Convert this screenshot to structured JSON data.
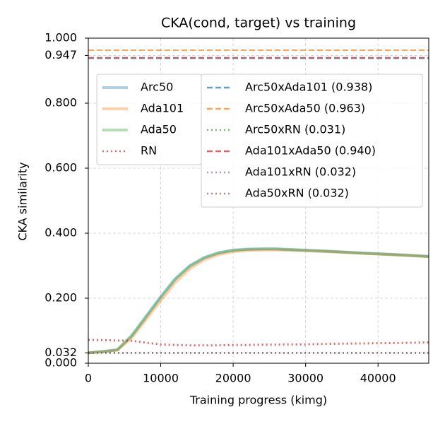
{
  "chart_data": {
    "type": "line",
    "title": "CKA(cond, target) vs training",
    "xlabel": "Training progress (kimg)",
    "ylabel": "CKA similarity",
    "x": [
      0,
      2000,
      4000,
      6000,
      8000,
      10000,
      12000,
      14000,
      16000,
      18000,
      20000,
      22000,
      24000,
      26000,
      28000,
      30000,
      34000,
      38000,
      42000,
      47000
    ],
    "series": [
      {
        "name": "Arc50",
        "color": "#1f77b4",
        "style": "solid",
        "values": [
          0.032,
          0.036,
          0.041,
          0.085,
          0.145,
          0.205,
          0.26,
          0.3,
          0.325,
          0.34,
          0.348,
          0.351,
          0.352,
          0.352,
          0.35,
          0.348,
          0.344,
          0.339,
          0.335,
          0.329
        ]
      },
      {
        "name": "Ada101",
        "color": "#ff7f0e",
        "style": "solid",
        "values": [
          0.032,
          0.035,
          0.04,
          0.078,
          0.135,
          0.192,
          0.248,
          0.29,
          0.318,
          0.334,
          0.343,
          0.347,
          0.348,
          0.348,
          0.347,
          0.346,
          0.342,
          0.338,
          0.334,
          0.328
        ]
      },
      {
        "name": "Ada50",
        "color": "#2ca02c",
        "style": "solid",
        "values": [
          0.032,
          0.036,
          0.041,
          0.084,
          0.143,
          0.202,
          0.258,
          0.298,
          0.324,
          0.339,
          0.347,
          0.35,
          0.351,
          0.351,
          0.349,
          0.347,
          0.343,
          0.338,
          0.334,
          0.328
        ]
      },
      {
        "name": "RN",
        "color": "#d62728",
        "style": "dotted",
        "values": [
          0.072,
          0.071,
          0.07,
          0.069,
          0.063,
          0.058,
          0.056,
          0.055,
          0.055,
          0.055,
          0.056,
          0.056,
          0.057,
          0.057,
          0.058,
          0.058,
          0.06,
          0.061,
          0.062,
          0.064
        ]
      }
    ],
    "hlines": [
      {
        "name": "Arc50xAda101 (0.938)",
        "color": "#1f77b4",
        "style": "dashed",
        "value": 0.938
      },
      {
        "name": "Arc50xAda50 (0.963)",
        "color": "#ff7f0e",
        "style": "dashed",
        "value": 0.963
      },
      {
        "name": "Arc50xRN (0.031)",
        "color": "#2ca02c",
        "style": "dotted",
        "value": 0.031
      },
      {
        "name": "Ada101xAda50 (0.940)",
        "color": "#d62728",
        "style": "dashed",
        "value": 0.94
      },
      {
        "name": "Ada101xRN (0.032)",
        "color": "#9467bd",
        "style": "dotted",
        "value": 0.032
      },
      {
        "name": "Ada50xRN (0.032)",
        "color": "#8c564b",
        "style": "dotted",
        "value": 0.032
      }
    ],
    "xlim": [
      0,
      47000
    ],
    "ylim": [
      0,
      1
    ],
    "xticks": [
      0,
      10000,
      20000,
      30000,
      40000
    ],
    "yticks": [
      {
        "value": 0,
        "label": "0.000"
      },
      {
        "value": 0.032,
        "label": "0.032"
      },
      {
        "value": 0.2,
        "label": "0.200"
      },
      {
        "value": 0.4,
        "label": "0.400"
      },
      {
        "value": 0.6,
        "label": "0.600"
      },
      {
        "value": 0.8,
        "label": "0.800"
      },
      {
        "value": 0.947,
        "label": "0.947"
      },
      {
        "value": 1,
        "label": "1.000"
      }
    ],
    "grid": true
  }
}
